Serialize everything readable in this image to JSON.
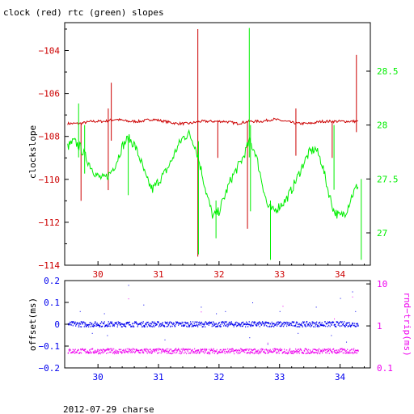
{
  "colors": {
    "red": "#cc0000",
    "green": "#00ee00",
    "blue": "#0000ee",
    "magenta": "#ee00ee",
    "axis_black": "#000000"
  },
  "footer": "2012-07-29 charse",
  "chart_data": [
    {
      "type": "line",
      "title": "clock (red) rtc (green) slopes",
      "ylabel": "clockslope",
      "xlim": [
        29.45,
        34.5
      ],
      "x_ticks": [
        "30",
        "31",
        "32",
        "33",
        "34"
      ],
      "x_tick_values": [
        30,
        31,
        32,
        33,
        34
      ],
      "ylim": [
        -114,
        -102.7
      ],
      "y_ticks": [
        "−104",
        "−106",
        "−108",
        "−110",
        "−112",
        "−114"
      ],
      "y_tick_values": [
        -104,
        -106,
        -108,
        -110,
        -112,
        -114
      ],
      "y2lim": [
        26.7,
        28.95
      ],
      "y2_ticks": [
        "28.5",
        "28",
        "27.5",
        "27"
      ],
      "y2_tick_values": [
        28.5,
        28,
        27.5,
        27
      ],
      "series": [
        {
          "name": "clock",
          "axis": "left",
          "color": "red",
          "x": [
            29.5,
            29.7,
            29.9,
            30.1,
            30.3,
            30.5,
            30.7,
            30.9,
            31.1,
            31.3,
            31.5,
            31.7,
            31.9,
            32.1,
            32.3,
            32.5,
            32.7,
            32.9,
            33.1,
            33.3,
            33.5,
            33.7,
            33.9,
            34.1,
            34.3
          ],
          "y": [
            -107.4,
            -107.4,
            -107.3,
            -107.3,
            -107.2,
            -107.3,
            -107.3,
            -107.2,
            -107.3,
            -107.4,
            -107.4,
            -107.3,
            -107.3,
            -107.3,
            -107.4,
            -107.3,
            -107.3,
            -107.2,
            -107.3,
            -107.4,
            -107.4,
            -107.3,
            -107.3,
            -107.3,
            -107.3
          ],
          "spikes": [
            {
              "x": 29.72,
              "lo": -111.0,
              "hi": -107.4
            },
            {
              "x": 30.17,
              "lo": -110.5,
              "hi": -106.7
            },
            {
              "x": 30.22,
              "lo": -108.2,
              "hi": -105.5
            },
            {
              "x": 31.65,
              "lo": -113.6,
              "hi": -103.0
            },
            {
              "x": 31.98,
              "lo": -109.0,
              "hi": -107.3
            },
            {
              "x": 32.47,
              "lo": -112.3,
              "hi": -107.3
            },
            {
              "x": 33.27,
              "lo": -108.9,
              "hi": -106.7
            },
            {
              "x": 33.87,
              "lo": -109.0,
              "hi": -107.3
            },
            {
              "x": 34.27,
              "lo": -107.8,
              "hi": -104.2
            }
          ]
        },
        {
          "name": "rtc",
          "axis": "right",
          "color": "green",
          "x": [
            29.5,
            29.6,
            29.7,
            29.8,
            29.9,
            30.0,
            30.1,
            30.2,
            30.3,
            30.4,
            30.5,
            30.6,
            30.7,
            30.8,
            30.9,
            31.0,
            31.1,
            31.2,
            31.3,
            31.4,
            31.5,
            31.6,
            31.7,
            31.8,
            31.9,
            32.0,
            32.1,
            32.2,
            32.3,
            32.4,
            32.5,
            32.6,
            32.7,
            32.8,
            32.9,
            33.0,
            33.1,
            33.2,
            33.3,
            33.4,
            33.5,
            33.6,
            33.7,
            33.8,
            33.9,
            34.0,
            34.1,
            34.2,
            34.3
          ],
          "y": [
            27.8,
            27.85,
            27.8,
            27.7,
            27.6,
            27.52,
            27.5,
            27.55,
            27.65,
            27.8,
            27.88,
            27.82,
            27.68,
            27.5,
            27.4,
            27.48,
            27.55,
            27.65,
            27.78,
            27.88,
            27.92,
            27.82,
            27.6,
            27.35,
            27.15,
            27.2,
            27.35,
            27.5,
            27.6,
            27.7,
            27.85,
            27.75,
            27.5,
            27.25,
            27.2,
            27.25,
            27.3,
            27.4,
            27.52,
            27.65,
            27.75,
            27.78,
            27.65,
            27.4,
            27.2,
            27.15,
            27.2,
            27.35,
            27.45
          ],
          "spikes": [
            {
              "x": 29.68,
              "lo": 27.7,
              "hi": 28.2
            },
            {
              "x": 29.78,
              "lo": 27.55,
              "hi": 28.0
            },
            {
              "x": 30.5,
              "lo": 27.35,
              "hi": 27.85
            },
            {
              "x": 31.66,
              "lo": 26.8,
              "hi": 27.85
            },
            {
              "x": 31.95,
              "lo": 26.95,
              "hi": 27.3
            },
            {
              "x": 32.5,
              "lo": 27.7,
              "hi": 28.9
            },
            {
              "x": 32.52,
              "lo": 27.2,
              "hi": 28.0
            },
            {
              "x": 32.85,
              "lo": 26.75,
              "hi": 27.3
            },
            {
              "x": 33.9,
              "lo": 27.4,
              "hi": 28.0
            },
            {
              "x": 34.35,
              "lo": 26.75,
              "hi": 27.5
            }
          ]
        }
      ]
    },
    {
      "type": "scatter",
      "title": "",
      "ylabel": "offset(ms)",
      "y2label": "rnd−trip(ms)",
      "xlim": [
        29.45,
        34.5
      ],
      "x_ticks": [
        "30",
        "31",
        "32",
        "33",
        "34"
      ],
      "x_tick_values": [
        30,
        31,
        32,
        33,
        34
      ],
      "ylim": [
        -0.2,
        0.2
      ],
      "y_ticks": [
        "0.2",
        "0.1",
        "0",
        "−0.1",
        "−0.2"
      ],
      "y_tick_values": [
        0.2,
        0.1,
        0,
        -0.1,
        -0.2
      ],
      "y2_scale": "log",
      "y2lim": [
        0.1,
        12
      ],
      "y2_ticks": [
        "10",
        "1",
        "0.1"
      ],
      "y2_tick_values": [
        10,
        1,
        0.1
      ],
      "series": [
        {
          "name": "offset",
          "axis": "left",
          "color": "blue",
          "band_center": 0.0,
          "band_halfwidth": 0.012,
          "x_start": 29.5,
          "x_end": 34.3,
          "outliers": [
            {
              "x": 29.7,
              "y": 0.06
            },
            {
              "x": 29.9,
              "y": -0.04
            },
            {
              "x": 30.1,
              "y": 0.05
            },
            {
              "x": 30.15,
              "y": -0.05
            },
            {
              "x": 30.5,
              "y": 0.18
            },
            {
              "x": 30.75,
              "y": 0.09
            },
            {
              "x": 31.1,
              "y": -0.07
            },
            {
              "x": 31.65,
              "y": -0.12
            },
            {
              "x": 31.7,
              "y": 0.08
            },
            {
              "x": 31.95,
              "y": 0.05
            },
            {
              "x": 32.1,
              "y": 0.06
            },
            {
              "x": 32.5,
              "y": -0.06
            },
            {
              "x": 32.55,
              "y": 0.1
            },
            {
              "x": 32.8,
              "y": -0.09
            },
            {
              "x": 33.0,
              "y": 0.06
            },
            {
              "x": 33.3,
              "y": -0.04
            },
            {
              "x": 33.6,
              "y": 0.08
            },
            {
              "x": 33.85,
              "y": -0.05
            },
            {
              "x": 34.0,
              "y": 0.12
            },
            {
              "x": 34.1,
              "y": -0.08
            },
            {
              "x": 34.2,
              "y": 0.15
            },
            {
              "x": 34.25,
              "y": 0.06
            }
          ]
        },
        {
          "name": "rnd-trip",
          "axis": "right",
          "color": "magenta",
          "band_center": 0.25,
          "band_halfwidth_log": 0.06,
          "x_start": 29.5,
          "x_end": 34.3,
          "outliers": [
            {
              "x": 30.5,
              "y": 4.5
            },
            {
              "x": 31.7,
              "y": 2.2
            },
            {
              "x": 32.8,
              "y": 0.4
            },
            {
              "x": 33.05,
              "y": 3.0
            },
            {
              "x": 33.9,
              "y": 1.5
            },
            {
              "x": 34.2,
              "y": 5.0
            }
          ]
        }
      ]
    }
  ]
}
